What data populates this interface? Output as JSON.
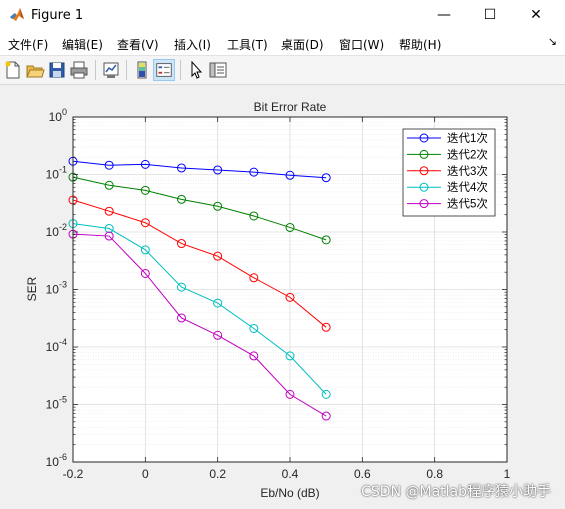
{
  "window": {
    "title": "Figure 1",
    "minimize": "—",
    "maximize": "☐",
    "close": "✕"
  },
  "menu": {
    "items": [
      "文件(F)",
      "编辑(E)",
      "查看(V)",
      "插入(I)",
      "工具(T)",
      "桌面(D)",
      "窗口(W)",
      "帮助(H)"
    ],
    "overflow": "↘"
  },
  "toolbar": {
    "icons": [
      "new-figure-icon",
      "open-file-icon",
      "save-icon",
      "print-icon",
      "link-plot-icon",
      "colorbar-icon",
      "legend-icon",
      "pointer-icon",
      "property-editor-icon"
    ]
  },
  "watermark": "CSDN @Matlab程序猿小助手",
  "chart_data": {
    "type": "line",
    "title": "Bit Error Rate",
    "xlabel": "Eb/No (dB)",
    "ylabel": "SER",
    "xlim": [
      -0.2,
      1
    ],
    "ylim": [
      1e-06,
      1
    ],
    "yscale": "log",
    "xticks": [
      "-0.2",
      "0",
      "0.2",
      "0.4",
      "0.6",
      "0.8",
      "1"
    ],
    "yticks": [
      {
        "base": "10",
        "exp": "0"
      },
      {
        "base": "10",
        "exp": "-1"
      },
      {
        "base": "10",
        "exp": "-2"
      },
      {
        "base": "10",
        "exp": "-3"
      },
      {
        "base": "10",
        "exp": "-4"
      },
      {
        "base": "10",
        "exp": "-5"
      },
      {
        "base": "10",
        "exp": "-6"
      }
    ],
    "grid": true,
    "legend_position": "top-right",
    "marker": "circle",
    "x": [
      -0.2,
      -0.1,
      0,
      0.1,
      0.2,
      0.3,
      0.4,
      0.5
    ],
    "series": [
      {
        "name": "迭代1次",
        "color": "#0000ff",
        "values": [
          0.17,
          0.145,
          0.15,
          0.13,
          0.12,
          0.11,
          0.097,
          0.088
        ]
      },
      {
        "name": "迭代2次",
        "color": "#008000",
        "values": [
          0.09,
          0.065,
          0.053,
          0.037,
          0.028,
          0.019,
          0.012,
          0.0073
        ]
      },
      {
        "name": "迭代3次",
        "color": "#ff0000",
        "values": [
          0.036,
          0.023,
          0.0145,
          0.0063,
          0.0038,
          0.0016,
          0.00073,
          0.00022
        ]
      },
      {
        "name": "迭代4次",
        "color": "#00bfbf",
        "values": [
          0.014,
          0.0115,
          0.0049,
          0.0011,
          0.00058,
          0.00021,
          7e-05,
          1.5e-05
        ]
      },
      {
        "name": "迭代5次",
        "color": "#bf00bf",
        "values": [
          0.0092,
          0.0085,
          0.0019,
          0.00032,
          0.00016,
          7e-05,
          1.5e-05,
          6.3e-06
        ]
      }
    ]
  }
}
